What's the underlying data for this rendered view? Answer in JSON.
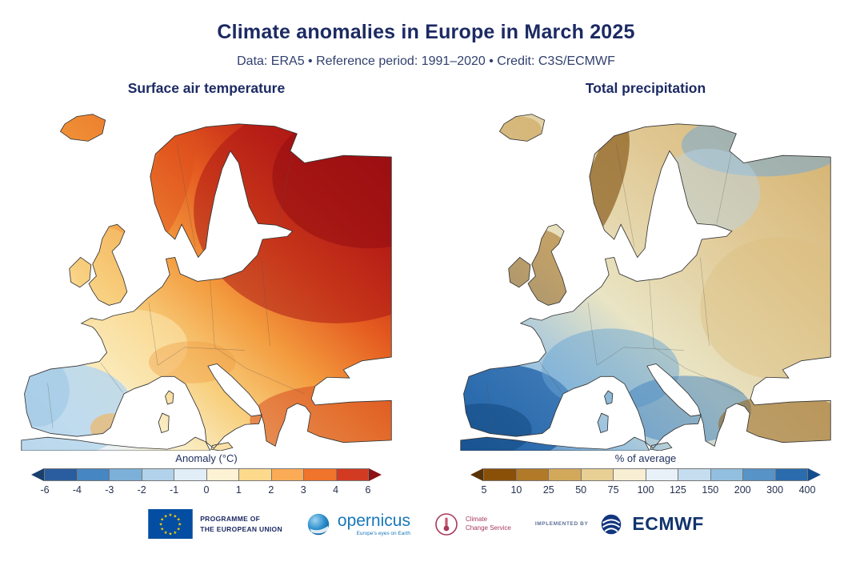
{
  "header": {
    "title": "Climate anomalies in Europe in March 2025",
    "subtitle": "Data: ERA5 • Reference period: 1991–2020 • Credit: C3S/ECMWF"
  },
  "temperature_panel": {
    "title": "Surface air temperature",
    "legend": {
      "title": "Anomaly (°C)",
      "ticks": [
        "-6",
        "-4",
        "-3",
        "-2",
        "-1",
        "0",
        "1",
        "2",
        "3",
        "4",
        "6"
      ],
      "colors": [
        "#2a5d9f",
        "#4686c2",
        "#7cb0d8",
        "#b1d2ea",
        "#e1eef7",
        "#fdf2d4",
        "#fdd98c",
        "#fbab55",
        "#f0742b",
        "#d23a22"
      ],
      "arrow_left": "#19406f",
      "arrow_right": "#8c1215"
    }
  },
  "precipitation_panel": {
    "title": "Total precipitation",
    "legend": {
      "title": "% of average",
      "ticks": [
        "5",
        "10",
        "25",
        "50",
        "75",
        "100",
        "125",
        "150",
        "200",
        "300",
        "400"
      ],
      "colors": [
        "#8a5008",
        "#b07a28",
        "#d2a95a",
        "#e8cf93",
        "#f7eed3",
        "#e8f1f7",
        "#c5ddef",
        "#92bfdf",
        "#5793c7",
        "#2a6cae"
      ],
      "arrow_left": "#5a3305",
      "arrow_right": "#134d8d"
    }
  },
  "footer": {
    "eu": {
      "line1": "PROGRAMME OF",
      "line2": "THE EUROPEAN UNION"
    },
    "copernicus": {
      "name": "opernicus",
      "tagline": "Europe's eyes on Earth"
    },
    "c3s": {
      "line1": "Climate",
      "line2": "Change Service"
    },
    "implemented_by": "IMPLEMENTED BY",
    "ecmwf": "ECMWF"
  },
  "colors": {
    "title_navy": "#1c2a63",
    "eu_flag_blue": "#034ea2",
    "eu_star_gold": "#ffcc00",
    "copernicus_blue": "#1878ba",
    "c3s_maroon": "#a93a5c",
    "ecmwf_navy": "#12346e"
  }
}
